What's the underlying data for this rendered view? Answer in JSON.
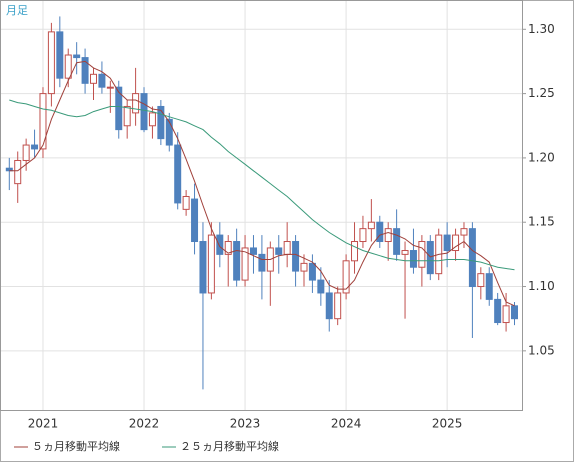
{
  "chart_data": {
    "type": "candlestick",
    "label": "月足",
    "categories": [
      null,
      null,
      null,
      null,
      "2021",
      null,
      null,
      null,
      null,
      null,
      null,
      null,
      null,
      null,
      null,
      null,
      "2022",
      null,
      null,
      null,
      null,
      null,
      null,
      null,
      null,
      null,
      null,
      null,
      "2023",
      null,
      null,
      null,
      null,
      null,
      null,
      null,
      null,
      null,
      null,
      null,
      "2024",
      null,
      null,
      null,
      null,
      null,
      null,
      null,
      null,
      null,
      null,
      null,
      "2025",
      null,
      null,
      null,
      null,
      null,
      null,
      null,
      null
    ],
    "open": [
      1.192,
      1.18,
      1.198,
      1.21,
      1.207,
      1.25,
      1.298,
      1.262,
      1.28,
      1.278,
      1.258,
      1.265,
      1.255,
      1.255,
      1.225,
      1.235,
      1.25,
      1.225,
      1.24,
      1.23,
      1.21,
      1.16,
      1.168,
      1.135,
      1.095,
      1.14,
      1.125,
      1.135,
      1.105,
      1.13,
      1.125,
      1.112,
      1.13,
      1.125,
      1.135,
      1.112,
      1.118,
      1.105,
      1.095,
      1.075,
      1.095,
      1.12,
      1.135,
      1.145,
      1.15,
      1.135,
      1.145,
      1.125,
      1.128,
      1.115,
      1.135,
      1.11,
      1.14,
      1.128,
      1.14,
      1.145,
      1.1,
      1.11,
      1.09,
      1.072,
      1.085
    ],
    "high": [
      1.2,
      1.205,
      1.215,
      1.222,
      1.255,
      1.305,
      1.31,
      1.285,
      1.29,
      1.285,
      1.27,
      1.275,
      1.26,
      1.26,
      1.245,
      1.27,
      1.255,
      1.24,
      1.245,
      1.235,
      1.22,
      1.175,
      1.18,
      1.15,
      1.15,
      1.15,
      1.14,
      1.145,
      1.14,
      1.14,
      1.14,
      1.135,
      1.14,
      1.15,
      1.14,
      1.125,
      1.125,
      1.115,
      1.105,
      1.1,
      1.125,
      1.15,
      1.155,
      1.168,
      1.155,
      1.15,
      1.16,
      1.135,
      1.145,
      1.14,
      1.14,
      1.145,
      1.15,
      1.145,
      1.15,
      1.15,
      1.115,
      1.115,
      1.095,
      1.095,
      1.088
    ],
    "low": [
      1.175,
      1.165,
      1.19,
      1.2,
      1.2,
      1.24,
      1.255,
      1.255,
      1.265,
      1.25,
      1.245,
      1.25,
      1.235,
      1.215,
      1.215,
      1.225,
      1.22,
      1.215,
      1.21,
      1.205,
      1.16,
      1.155,
      1.125,
      1.02,
      1.09,
      1.115,
      1.1,
      1.1,
      1.1,
      1.11,
      1.09,
      1.085,
      1.11,
      1.115,
      1.1,
      1.1,
      1.095,
      1.085,
      1.065,
      1.07,
      1.09,
      1.11,
      1.13,
      1.135,
      1.13,
      1.12,
      1.12,
      1.075,
      1.11,
      1.1,
      1.105,
      1.105,
      1.115,
      1.12,
      1.13,
      1.06,
      1.09,
      1.085,
      1.07,
      1.065,
      1.07
    ],
    "close": [
      1.19,
      1.198,
      1.21,
      1.207,
      1.25,
      1.298,
      1.262,
      1.28,
      1.278,
      1.258,
      1.265,
      1.255,
      1.255,
      1.222,
      1.24,
      1.25,
      1.222,
      1.235,
      1.215,
      1.21,
      1.165,
      1.17,
      1.135,
      1.095,
      1.14,
      1.125,
      1.135,
      1.105,
      1.13,
      1.125,
      1.112,
      1.13,
      1.125,
      1.135,
      1.112,
      1.118,
      1.105,
      1.095,
      1.075,
      1.095,
      1.12,
      1.135,
      1.145,
      1.15,
      1.135,
      1.145,
      1.125,
      1.128,
      1.115,
      1.135,
      1.11,
      1.14,
      1.128,
      1.14,
      1.145,
      1.1,
      1.11,
      1.09,
      1.072,
      1.085,
      1.075
    ],
    "up_color": "#c0504d",
    "down_color": "#4f81bd",
    "series": [
      {
        "name": "５ヵ月移動平均線",
        "color": "#a0403a",
        "values": [
          1.19,
          1.19,
          1.195,
          1.2,
          1.21,
          1.23,
          1.245,
          1.26,
          1.274,
          1.275,
          1.27,
          1.267,
          1.262,
          1.251,
          1.245,
          1.245,
          1.242,
          1.238,
          1.237,
          1.228,
          1.215,
          1.199,
          1.182,
          1.163,
          1.145,
          1.131,
          1.126,
          1.128,
          1.127,
          1.124,
          1.121,
          1.121,
          1.124,
          1.125,
          1.125,
          1.122,
          1.119,
          1.112,
          1.101,
          1.098,
          1.098,
          1.105,
          1.119,
          1.132,
          1.14,
          1.142,
          1.14,
          1.137,
          1.132,
          1.13,
          1.123,
          1.125,
          1.126,
          1.131,
          1.135,
          1.128,
          1.124,
          1.119,
          1.103,
          1.088,
          1.085
        ]
      },
      {
        "name": "２５ヵ月移動平均線",
        "color": "#3a9a7a",
        "values": [
          1.245,
          1.243,
          1.242,
          1.24,
          1.238,
          1.237,
          1.235,
          1.233,
          1.232,
          1.233,
          1.236,
          1.238,
          1.24,
          1.24,
          1.239,
          1.238,
          1.237,
          1.236,
          1.234,
          1.232,
          1.23,
          1.228,
          1.225,
          1.222,
          1.216,
          1.211,
          1.205,
          1.2,
          1.195,
          1.19,
          1.185,
          1.18,
          1.175,
          1.17,
          1.164,
          1.158,
          1.152,
          1.147,
          1.142,
          1.138,
          1.134,
          1.131,
          1.128,
          1.126,
          1.124,
          1.122,
          1.121,
          1.12,
          1.12,
          1.12,
          1.12,
          1.12,
          1.121,
          1.121,
          1.121,
          1.12,
          1.119,
          1.117,
          1.115,
          1.114,
          1.113
        ]
      }
    ],
    "ylim": [
      1.004,
      1.322
    ],
    "yticks": [
      1.05,
      {
        "value": 1.1,
        "label": "1.10"
      },
      1.15,
      {
        "value": 1.2,
        "label": "1.20"
      },
      1.25,
      {
        "value": 1.3,
        "label": "1.30"
      }
    ],
    "grid": true
  }
}
